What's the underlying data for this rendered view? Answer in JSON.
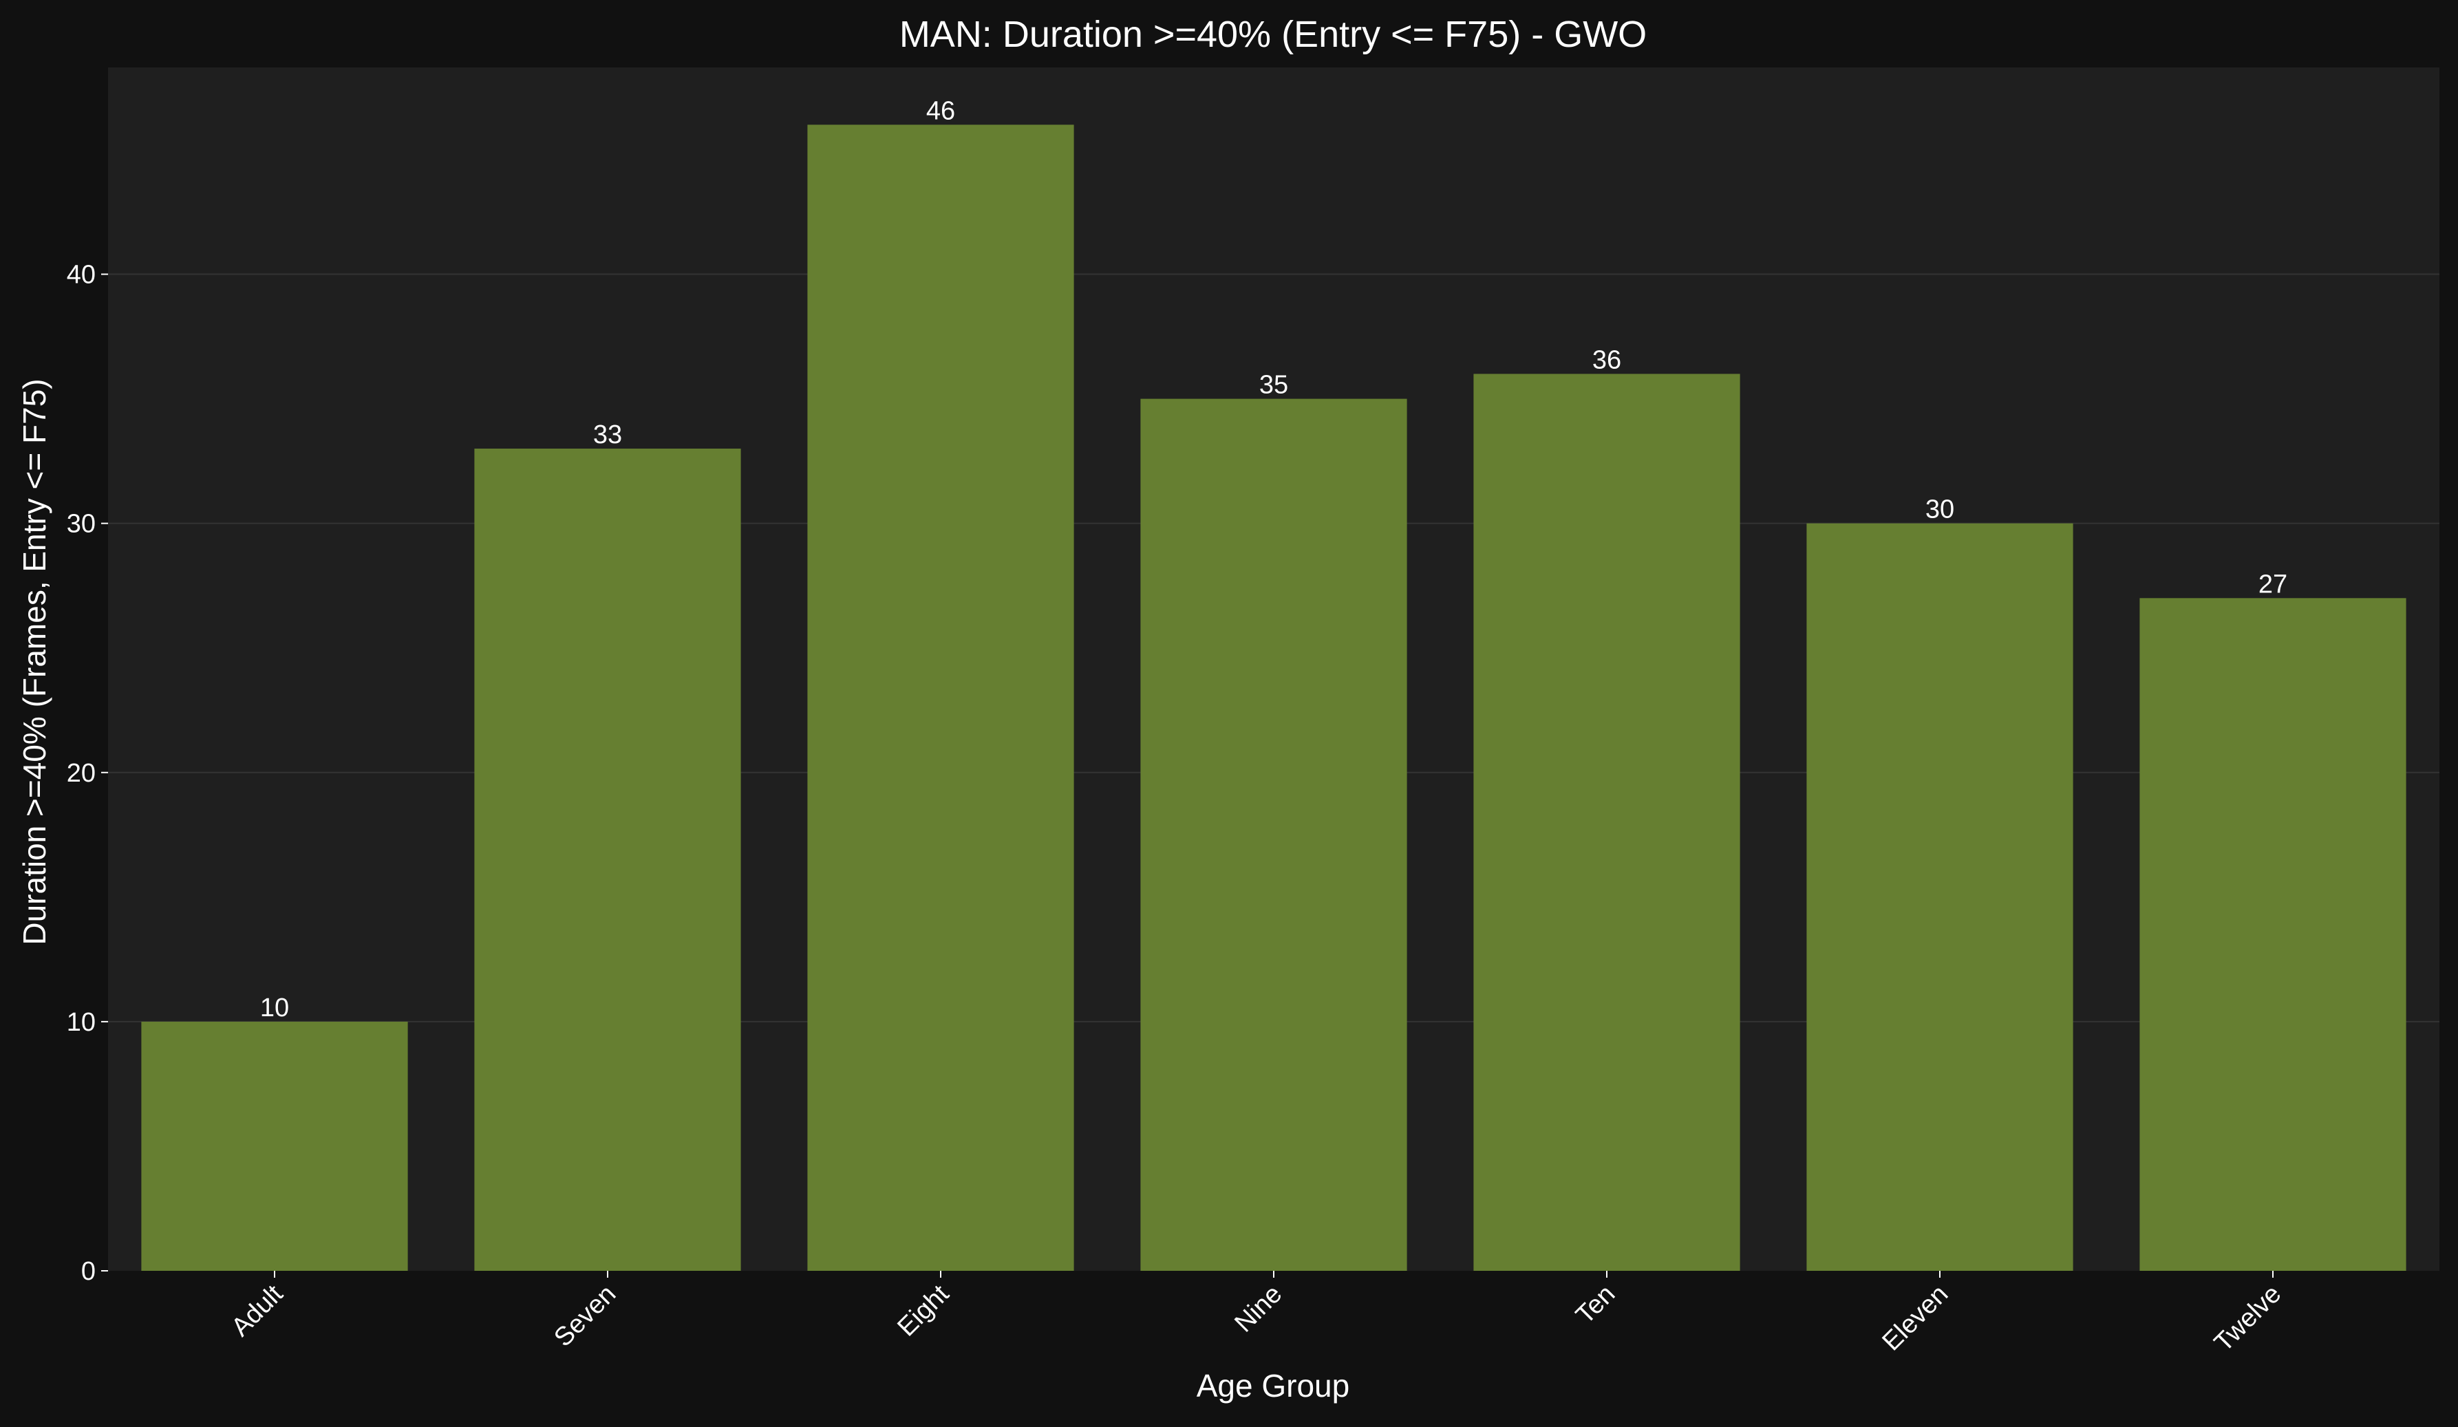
{
  "chart_data": {
    "type": "bar",
    "title": "MAN: Duration >=40% (Entry <= F75) - GWO",
    "xlabel": "Age Group",
    "ylabel": "Duration >=40% (Frames, Entry <= F75)",
    "categories": [
      "Adult",
      "Seven",
      "Eight",
      "Nine",
      "Ten",
      "Eleven",
      "Twelve"
    ],
    "values": [
      10,
      33,
      46,
      35,
      36,
      30,
      27
    ],
    "ylim": [
      0,
      48.3
    ],
    "yticks": [
      0,
      10,
      20,
      30,
      40
    ],
    "grid": true,
    "colors": {
      "bar": "#667f31",
      "figure_background": "#111111",
      "plot_background": "#1f1f1f",
      "grid": "#333333",
      "text": "#ffffff"
    }
  }
}
